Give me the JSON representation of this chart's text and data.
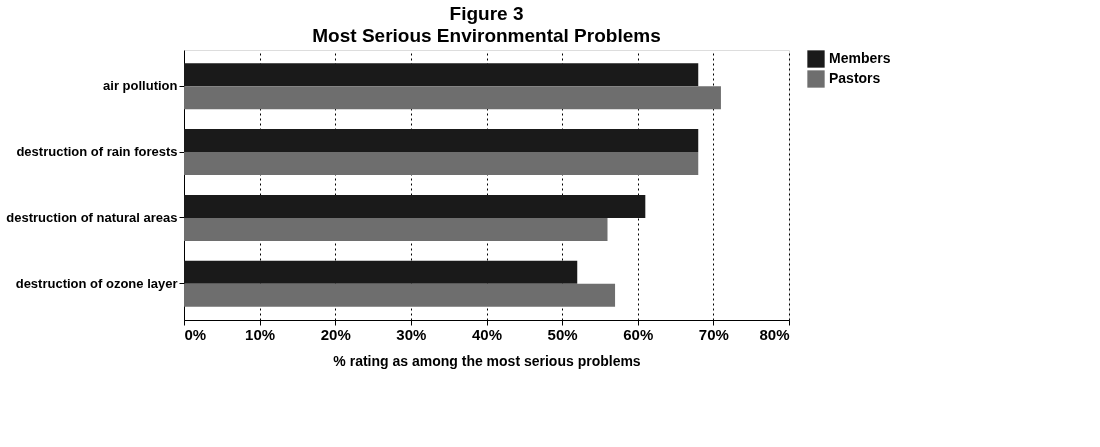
{
  "chart_data": {
    "type": "bar",
    "orientation": "horizontal",
    "title": "Figure 3",
    "subtitle": "Most Serious Environmental Problems",
    "xlabel": "% rating as among the most serious problems",
    "categories": [
      "air pollution",
      "destruction of rain forests",
      "destruction of natural areas",
      "destruction of ozone layer"
    ],
    "series": [
      {
        "name": "Members",
        "color": "#1a1a1a",
        "values": [
          68,
          68,
          61,
          52
        ]
      },
      {
        "name": "Pastors",
        "color": "#6e6e6e",
        "values": [
          71,
          68,
          56,
          57
        ]
      }
    ],
    "xlim": [
      0,
      80
    ],
    "xticks": [
      {
        "value": 0,
        "label": "0%"
      },
      {
        "value": 10,
        "label": "10%"
      },
      {
        "value": 20,
        "label": "20%"
      },
      {
        "value": 30,
        "label": "30%"
      },
      {
        "value": 40,
        "label": "40%"
      },
      {
        "value": 50,
        "label": "50%"
      },
      {
        "value": 60,
        "label": "60%"
      },
      {
        "value": 70,
        "label": "70%"
      },
      {
        "value": 80,
        "label": "80%"
      }
    ],
    "grid": "x",
    "legend": "right"
  }
}
